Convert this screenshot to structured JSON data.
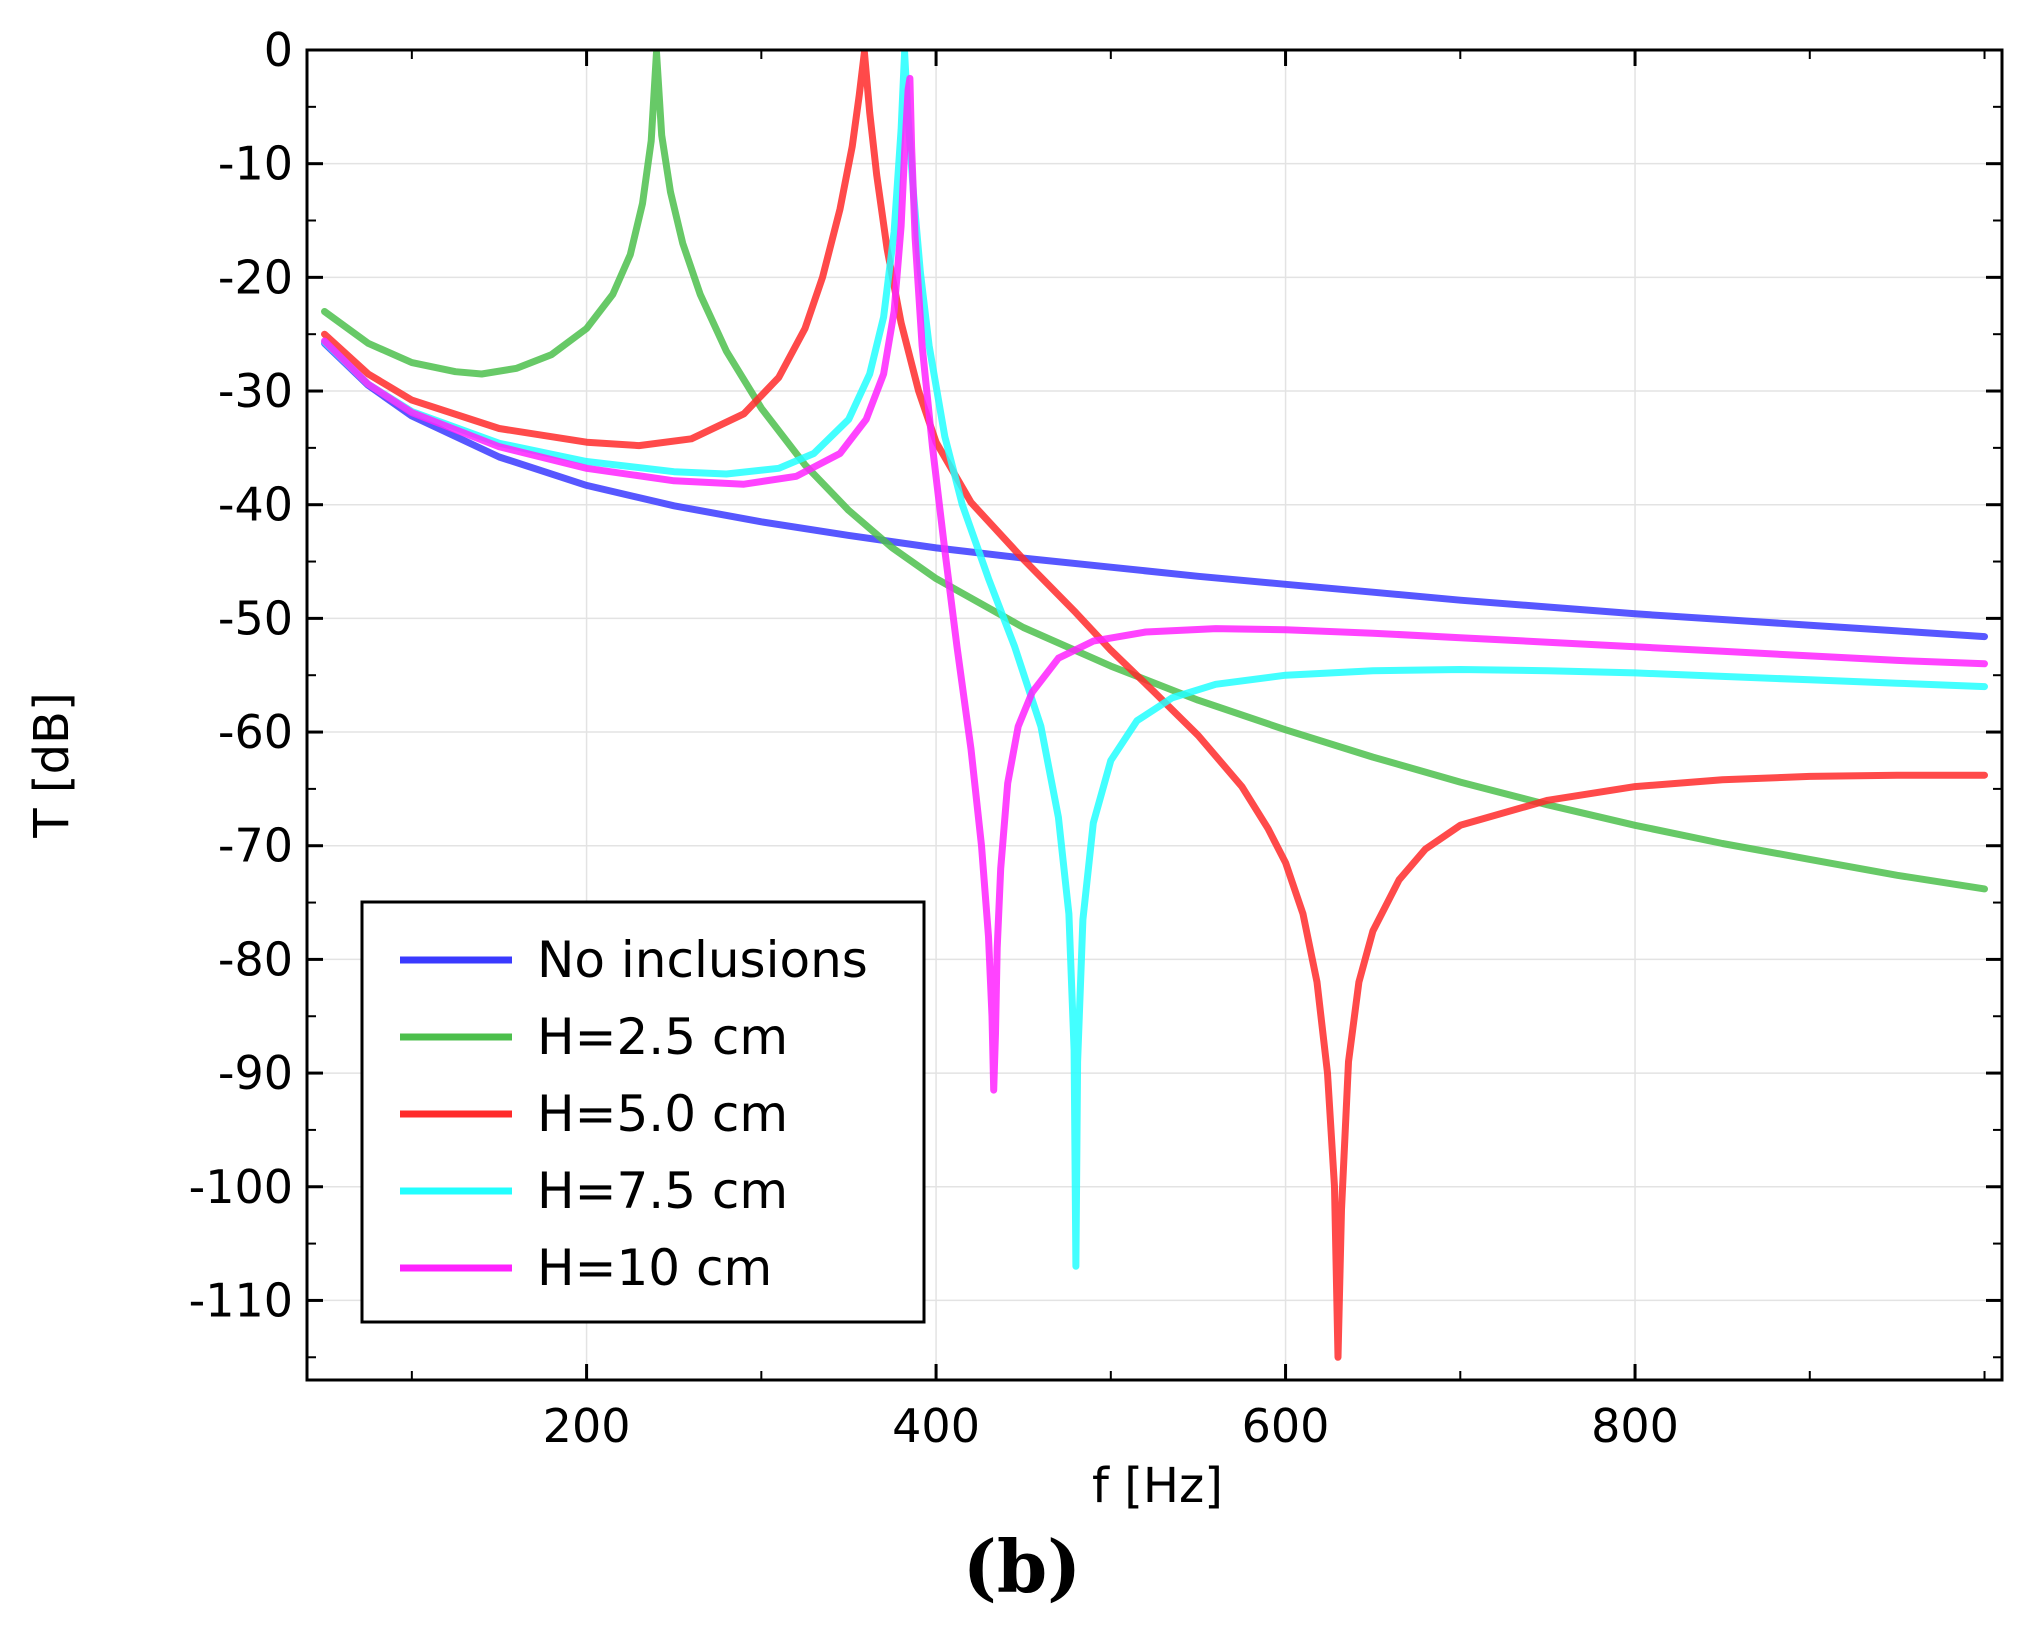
{
  "chart_data": {
    "type": "line",
    "title": "",
    "panel_label": "(b)",
    "xlabel": "f [Hz]",
    "ylabel": "T [dB]",
    "xlim": [
      40,
      1010
    ],
    "ylim": [
      -117,
      0
    ],
    "xticks": [
      200,
      400,
      600,
      800
    ],
    "yticks": [
      0,
      -10,
      -20,
      -30,
      -40,
      -50,
      -60,
      -70,
      -80,
      -90,
      -100,
      -110
    ],
    "grid": true,
    "legend_position": "bottom-left",
    "series": [
      {
        "name": "No inclusions",
        "color": "#3a3aff",
        "x": [
          50,
          75,
          100,
          150,
          200,
          250,
          300,
          350,
          400,
          450,
          500,
          550,
          600,
          650,
          700,
          750,
          800,
          850,
          900,
          950,
          1000
        ],
        "y": [
          -25.8,
          -29.5,
          -32.2,
          -35.8,
          -38.3,
          -40.1,
          -41.5,
          -42.7,
          -43.8,
          -44.7,
          -45.5,
          -46.3,
          -47.0,
          -47.7,
          -48.4,
          -49.0,
          -49.6,
          -50.1,
          -50.6,
          -51.1,
          -51.6
        ]
      },
      {
        "name": "H=2.5 cm",
        "color": "#4cbf4c",
        "x": [
          50,
          75,
          100,
          125,
          140,
          160,
          180,
          200,
          215,
          225,
          232,
          237,
          240,
          243,
          248,
          255,
          265,
          280,
          300,
          325,
          350,
          375,
          400,
          450,
          500,
          550,
          600,
          650,
          700,
          750,
          800,
          850,
          900,
          950,
          1000
        ],
        "y": [
          -23.0,
          -25.8,
          -27.5,
          -28.3,
          -28.5,
          -28.0,
          -26.8,
          -24.5,
          -21.5,
          -18.0,
          -13.5,
          -8.0,
          -0.2,
          -7.5,
          -12.5,
          -17.0,
          -21.5,
          -26.5,
          -31.5,
          -36.5,
          -40.5,
          -43.8,
          -46.5,
          -50.8,
          -54.2,
          -57.2,
          -59.8,
          -62.2,
          -64.4,
          -66.4,
          -68.2,
          -69.8,
          -71.2,
          -72.6,
          -73.8
        ]
      },
      {
        "name": "H=5.0 cm",
        "color": "#ff2a2a",
        "x": [
          50,
          75,
          100,
          150,
          200,
          230,
          260,
          290,
          310,
          325,
          335,
          345,
          352,
          356,
          359,
          362,
          366,
          372,
          380,
          390,
          400,
          420,
          450,
          480,
          500,
          525,
          550,
          575,
          590,
          600,
          610,
          618,
          624,
          628,
          630,
          632,
          636,
          642,
          650,
          665,
          680,
          700,
          750,
          800,
          850,
          900,
          950,
          1000
        ],
        "y": [
          -25.0,
          -28.5,
          -30.8,
          -33.3,
          -34.5,
          -34.8,
          -34.2,
          -32.0,
          -28.8,
          -24.5,
          -20.0,
          -14.0,
          -8.5,
          -4.0,
          -0.2,
          -5.5,
          -11.0,
          -17.5,
          -24.0,
          -30.0,
          -34.5,
          -39.8,
          -44.8,
          -49.5,
          -52.8,
          -56.5,
          -60.3,
          -64.8,
          -68.5,
          -71.5,
          -76.0,
          -82.0,
          -90.0,
          -100.0,
          -115.0,
          -102.0,
          -89.0,
          -82.0,
          -77.5,
          -73.0,
          -70.3,
          -68.2,
          -66.0,
          -64.8,
          -64.2,
          -63.9,
          -63.8,
          -63.8
        ]
      },
      {
        "name": "H=7.5 cm",
        "color": "#22ffff",
        "x": [
          50,
          75,
          100,
          150,
          200,
          250,
          280,
          310,
          330,
          350,
          362,
          370,
          376,
          380,
          382,
          384,
          387,
          391,
          396,
          405,
          415,
          430,
          445,
          460,
          470,
          476,
          479,
          480,
          481,
          484,
          490,
          500,
          515,
          535,
          560,
          600,
          650,
          700,
          750,
          800,
          850,
          900,
          950,
          1000
        ],
        "y": [
          -25.7,
          -29.4,
          -31.8,
          -34.6,
          -36.2,
          -37.1,
          -37.3,
          -36.8,
          -35.5,
          -32.5,
          -28.5,
          -23.5,
          -16.0,
          -7.0,
          -0.2,
          -6.0,
          -12.5,
          -19.5,
          -26.0,
          -34.0,
          -40.0,
          -46.5,
          -52.5,
          -59.5,
          -67.5,
          -76.0,
          -88.0,
          -107.0,
          -89.0,
          -76.5,
          -68.0,
          -62.5,
          -59.0,
          -57.0,
          -55.8,
          -55.0,
          -54.6,
          -54.5,
          -54.6,
          -54.8,
          -55.1,
          -55.4,
          -55.7,
          -56.0
        ]
      },
      {
        "name": "H=10 cm",
        "color": "#ff22ff",
        "x": [
          50,
          75,
          100,
          150,
          200,
          250,
          290,
          320,
          345,
          360,
          370,
          376,
          380,
          382,
          384,
          385,
          386,
          388,
          392,
          398,
          405,
          412,
          420,
          426,
          430,
          432,
          433,
          434,
          435,
          437,
          441,
          447,
          455,
          470,
          490,
          520,
          560,
          600,
          650,
          700,
          750,
          800,
          850,
          900,
          950,
          1000
        ],
        "y": [
          -25.6,
          -29.4,
          -31.9,
          -34.9,
          -36.8,
          -37.9,
          -38.2,
          -37.5,
          -35.5,
          -32.5,
          -28.5,
          -23.0,
          -15.5,
          -9.0,
          -3.5,
          -2.5,
          -8.5,
          -16.5,
          -26.0,
          -35.0,
          -44.0,
          -52.5,
          -61.5,
          -70.0,
          -78.0,
          -85.0,
          -91.5,
          -86.5,
          -79.0,
          -72.0,
          -64.5,
          -59.5,
          -56.5,
          -53.5,
          -52.0,
          -51.2,
          -50.9,
          -51.0,
          -51.3,
          -51.7,
          -52.1,
          -52.5,
          -52.9,
          -53.3,
          -53.7,
          -54.0
        ]
      }
    ]
  }
}
